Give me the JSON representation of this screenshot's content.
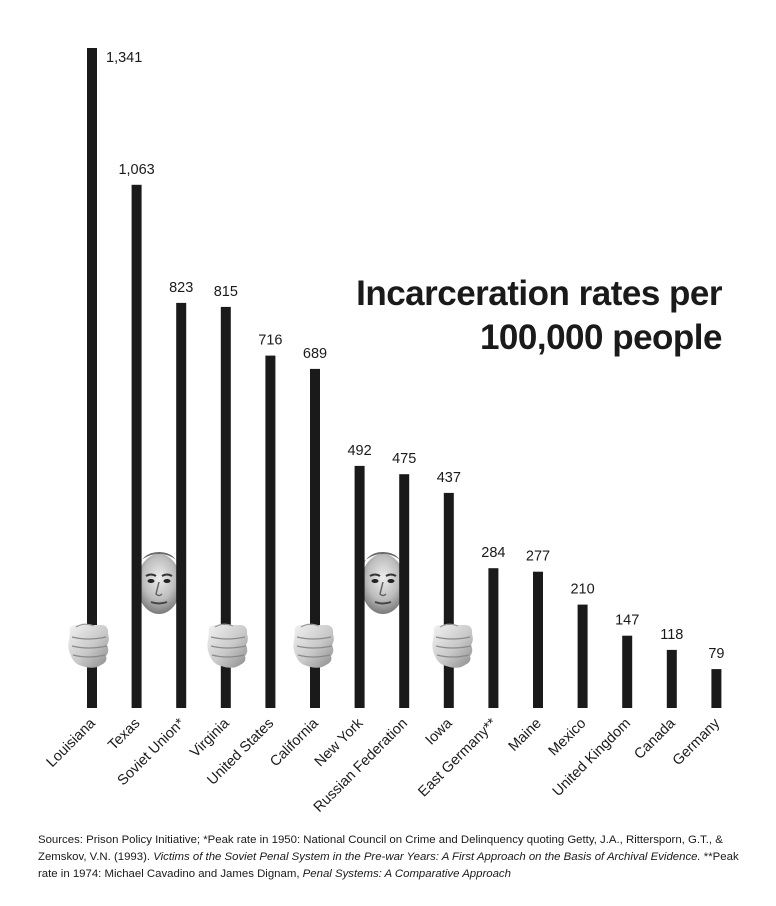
{
  "chart_data": {
    "type": "bar",
    "title_lines": [
      "Incarceration rates per",
      "100,000 people"
    ],
    "categories": [
      "Louisiana",
      "Texas",
      "Soviet Union*",
      "Virginia",
      "United States",
      "California",
      "New York",
      "Russian Federation",
      "Iowa",
      "East Germany**",
      "Maine",
      "Mexico",
      "United Kingdom",
      "Canada",
      "Germany"
    ],
    "values": [
      1341,
      1063,
      823,
      815,
      716,
      689,
      492,
      475,
      437,
      284,
      277,
      210,
      147,
      118,
      79
    ],
    "value_labels": [
      "1,341",
      "1,063",
      "823",
      "815",
      "716",
      "689",
      "492",
      "475",
      "437",
      "284",
      "277",
      "210",
      "147",
      "118",
      "79"
    ],
    "ylim": [
      0,
      1341
    ],
    "grid": false,
    "bar_color": "#1a1a1a"
  },
  "illustrations": {
    "faces": [
      "face-between-soviet-union-and-texas",
      "face-between-new-york-and-russian-federation"
    ],
    "hands": [
      "hand-on-louisiana",
      "hand-on-virginia",
      "hand-on-california",
      "hand-on-iowa"
    ]
  },
  "sources": {
    "part1": "Sources: Prison Policy Initiative; *Peak rate in 1950: National Council on Crime and Delinquency quoting Getty, J.A., Rittersporn, G.T., & Zemskov, V.N. (1993). ",
    "part2_italic": "Victims of the Soviet Penal System in the Pre-war Years: A First Approach on the Basis of Archival Evidence.",
    "part3": " **Peak rate in 1974: Michael Cavadino and James Dignam, ",
    "part4_italic": "Penal Systems: A Comparative Approach"
  }
}
